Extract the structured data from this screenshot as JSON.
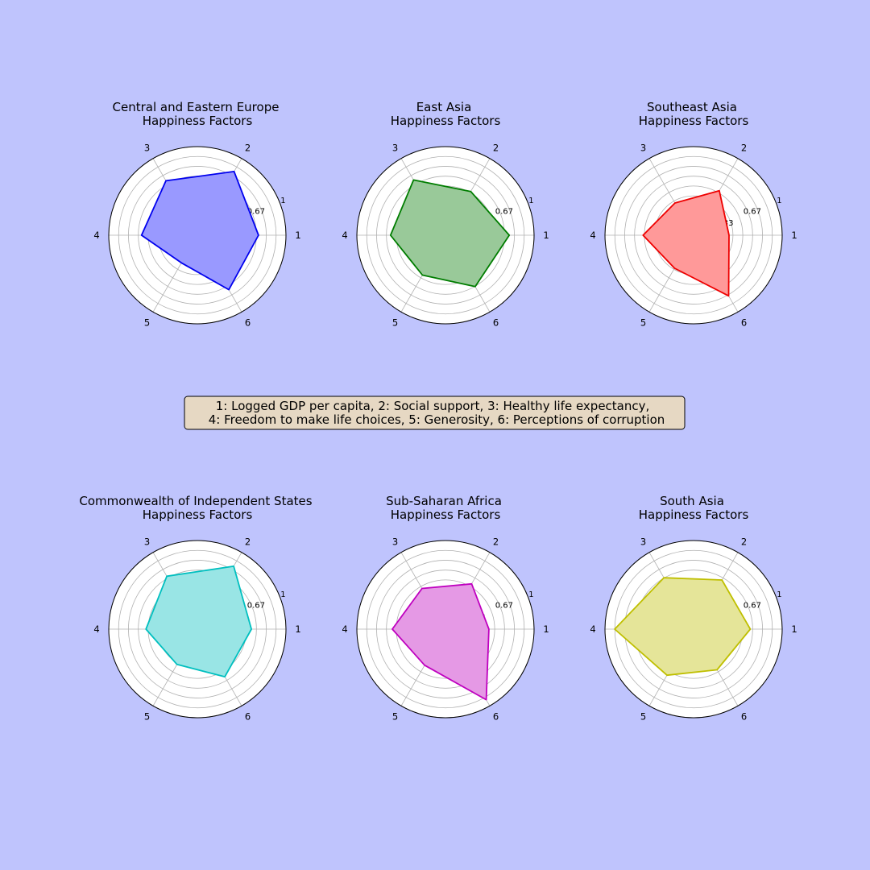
{
  "figure": {
    "background": "#bfc4fd"
  },
  "legend": {
    "line1": "1: Logged GDP per capita, 2: Social support, 3: Healthy life expectancy,",
    "line2": "4: Freedom to make life choices, 5: Generosity, 6: Perceptions of corruption",
    "background": "#e6d8c3"
  },
  "chart_data": [
    {
      "type": "radar",
      "title_line1": "Central and Eastern Europe",
      "title_line2": "Happiness Factors",
      "color": "#0000ee",
      "fill": "#9999ff",
      "axes": [
        "1",
        "2",
        "3",
        "4",
        "5",
        "6"
      ],
      "radial_ticks": [
        "0.33",
        "0.67",
        "1"
      ],
      "rlim": [
        0,
        1
      ],
      "values": [
        0.69,
        0.83,
        0.71,
        0.63,
        0.36,
        0.71
      ]
    },
    {
      "type": "radar",
      "title_line1": "East Asia",
      "title_line2": "Happiness Factors",
      "color": "#007d00",
      "fill": "#99c999",
      "axes": [
        "1",
        "2",
        "3",
        "4",
        "5",
        "6"
      ],
      "radial_ticks": [
        "0.33",
        "0.67",
        "1"
      ],
      "rlim": [
        0,
        1
      ],
      "values": [
        0.72,
        0.57,
        0.72,
        0.62,
        0.52,
        0.67
      ]
    },
    {
      "type": "radar",
      "title_line1": "Southeast Asia",
      "title_line2": "Happiness Factors",
      "color": "#ee0000",
      "fill": "#ff9999",
      "axes": [
        "1",
        "2",
        "3",
        "4",
        "5",
        "6"
      ],
      "radial_ticks": [
        "0.33",
        "0.67",
        "1"
      ],
      "rlim": [
        0,
        1
      ],
      "values": [
        0.4,
        0.58,
        0.42,
        0.57,
        0.43,
        0.79
      ]
    },
    {
      "type": "radar",
      "title_line1": "Commonwealth of Independent States",
      "title_line2": "Happiness Factors",
      "color": "#00bfbf",
      "fill": "#99e5e5",
      "axes": [
        "1",
        "2",
        "3",
        "4",
        "5",
        "6"
      ],
      "radial_ticks": [
        "0.33",
        "0.67",
        "1"
      ],
      "rlim": [
        0,
        1
      ],
      "values": [
        0.61,
        0.82,
        0.69,
        0.58,
        0.46,
        0.62
      ]
    },
    {
      "type": "radar",
      "title_line1": "Sub-Saharan Africa",
      "title_line2": "Happiness Factors",
      "color": "#bf00bf",
      "fill": "#e599e5",
      "axes": [
        "1",
        "2",
        "3",
        "4",
        "5",
        "6"
      ],
      "radial_ticks": [
        "0.33",
        "0.67",
        "1"
      ],
      "rlim": [
        0,
        1
      ],
      "values": [
        0.49,
        0.59,
        0.53,
        0.6,
        0.47,
        0.92
      ]
    },
    {
      "type": "radar",
      "title_line1": "South Asia",
      "title_line2": "Happiness Factors",
      "color": "#bfbf00",
      "fill": "#e5e599",
      "axes": [
        "1",
        "2",
        "3",
        "4",
        "5",
        "6"
      ],
      "radial_ticks": [
        "0.33",
        "0.67",
        "1"
      ],
      "rlim": [
        0,
        1
      ],
      "values": [
        0.64,
        0.64,
        0.67,
        0.89,
        0.6,
        0.53
      ]
    }
  ]
}
